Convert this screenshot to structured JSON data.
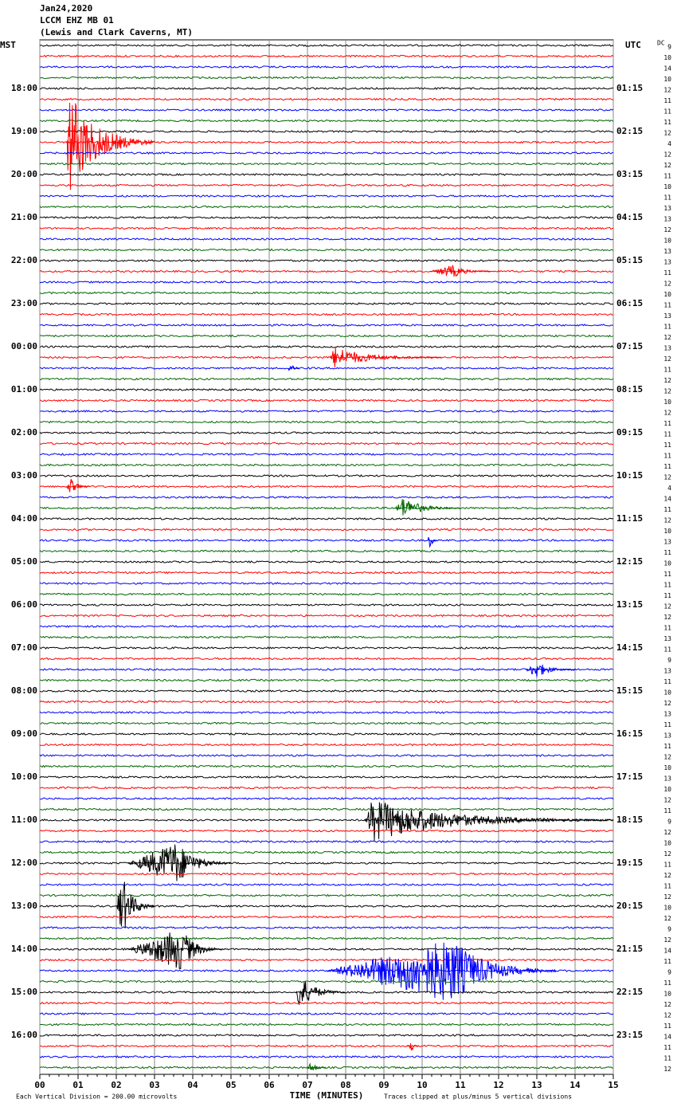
{
  "chart_data": {
    "type": "helicorder",
    "title": [
      "Jan24,2020",
      "LCCM EHZ MB 01",
      "(Lewis and Clark Caverns, MT)"
    ],
    "left_axis_label": "MST",
    "right_axis_label": "UTC",
    "dc_label": "DC",
    "xlabel": "TIME (MINUTES)",
    "scale_note": "Each Vertical Division =  200.00 microvolts",
    "clip_note": "Traces clipped at plus/minus 5 vertical divisions",
    "xlim": [
      0,
      15
    ],
    "xticks": [
      {
        "value": 0,
        "label": "00"
      },
      {
        "value": 1,
        "label": "01"
      },
      {
        "value": 2,
        "label": "02"
      },
      {
        "value": 3,
        "label": "03"
      },
      {
        "value": 4,
        "label": "04"
      },
      {
        "value": 5,
        "label": "05"
      },
      {
        "value": 6,
        "label": "06"
      },
      {
        "value": 7,
        "label": "07"
      },
      {
        "value": 8,
        "label": "08"
      },
      {
        "value": 9,
        "label": "09"
      },
      {
        "value": 10,
        "label": "10"
      },
      {
        "value": 11,
        "label": "11"
      },
      {
        "value": 12,
        "label": "12"
      },
      {
        "value": 13,
        "label": "13"
      },
      {
        "value": 14,
        "label": "14"
      },
      {
        "value": 15,
        "label": "15"
      }
    ],
    "grid": true,
    "trace_colors": [
      "#000000",
      "#ff0000",
      "#0000ff",
      "#006600"
    ],
    "left_labels": [
      "18:00",
      "19:00",
      "20:00",
      "21:00",
      "22:00",
      "23:00",
      "00:00",
      "01:00",
      "02:00",
      "03:00",
      "04:00",
      "05:00",
      "06:00",
      "07:00",
      "08:00",
      "09:00",
      "10:00",
      "11:00",
      "12:00",
      "13:00",
      "14:00",
      "15:00",
      "16:00"
    ],
    "right_labels": [
      "01:15",
      "02:15",
      "03:15",
      "04:15",
      "05:15",
      "06:15",
      "07:15",
      "08:15",
      "09:15",
      "10:15",
      "11:15",
      "12:15",
      "13:15",
      "14:15",
      "15:15",
      "16:15",
      "17:15",
      "18:15",
      "19:15",
      "20:15",
      "21:15",
      "22:15",
      "23:15"
    ],
    "dc_values": [
      9,
      10,
      14,
      10,
      12,
      11,
      11,
      11,
      12,
      4,
      12,
      12,
      11,
      10,
      11,
      13,
      13,
      12,
      10,
      13,
      13,
      11,
      12,
      10,
      11,
      13,
      11,
      12,
      13,
      12,
      11,
      12,
      12,
      10,
      12,
      11,
      11,
      11,
      11,
      11,
      12,
      4,
      14,
      11,
      12,
      10,
      13,
      11,
      10,
      11,
      11,
      11,
      12,
      12,
      11,
      13,
      11,
      9,
      13,
      11,
      10,
      12,
      13,
      11,
      13,
      11,
      12,
      10,
      13,
      10,
      12,
      11,
      9,
      12,
      10,
      12,
      11,
      12,
      11,
      12,
      10,
      12,
      9,
      12,
      14,
      11,
      9,
      11,
      10,
      12,
      12,
      11,
      14,
      11,
      11,
      12
    ],
    "events": [
      {
        "trace": 9,
        "start": 0.7,
        "peak": 0.75,
        "end": 3.0,
        "amp": 2.5
      },
      {
        "trace": 21,
        "start": 10.2,
        "peak": 10.8,
        "end": 11.8,
        "amp": 0.3
      },
      {
        "trace": 29,
        "start": 7.6,
        "peak": 7.7,
        "end": 10.5,
        "amp": 0.5
      },
      {
        "trace": 30,
        "start": 6.5,
        "peak": 6.55,
        "end": 6.8,
        "amp": 0.3
      },
      {
        "trace": 41,
        "start": 0.7,
        "peak": 0.8,
        "end": 1.3,
        "amp": 0.4
      },
      {
        "trace": 43,
        "start": 9.3,
        "peak": 9.5,
        "end": 11.0,
        "amp": 0.5
      },
      {
        "trace": 46,
        "start": 10.15,
        "peak": 10.2,
        "end": 10.4,
        "amp": 0.5
      },
      {
        "trace": 58,
        "start": 12.7,
        "peak": 13.0,
        "end": 14.0,
        "amp": 0.4
      },
      {
        "trace": 72,
        "start": 8.5,
        "peak": 8.7,
        "end": 15.0,
        "amp": 1.0
      },
      {
        "trace": 76,
        "start": 2.3,
        "peak": 3.6,
        "end": 5.0,
        "amp": 1.0
      },
      {
        "trace": 80,
        "start": 2.0,
        "peak": 2.15,
        "end": 3.0,
        "amp": 1.5
      },
      {
        "trace": 84,
        "start": 2.3,
        "peak": 3.7,
        "end": 4.8,
        "amp": 1.0
      },
      {
        "trace": 86,
        "start": 7.5,
        "peak": 10.8,
        "end": 13.5,
        "amp": 1.5
      },
      {
        "trace": 88,
        "start": 6.7,
        "peak": 6.75,
        "end": 8.0,
        "amp": 0.9
      },
      {
        "trace": 93,
        "start": 9.6,
        "peak": 9.7,
        "end": 9.9,
        "amp": 0.4
      },
      {
        "trace": 95,
        "start": 7.0,
        "peak": 7.1,
        "end": 7.5,
        "amp": 0.3
      }
    ]
  }
}
